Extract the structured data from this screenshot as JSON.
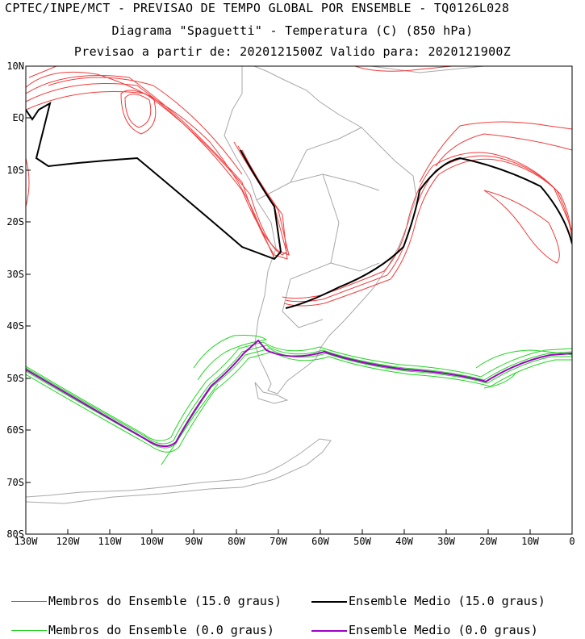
{
  "header": {
    "line1": "CPTEC/INPE/MCT - PREVISAO DE TEMPO GLOBAL POR ENSEMBLE - TQ0126L028",
    "line2": "Diagrama \"Spaguetti\" - Temperatura (C) (850 hPa)",
    "line3": "Previsao a partir de: 2020121500Z  Valido para: 2020121900Z"
  },
  "axes": {
    "lat_labels": [
      "10N",
      "EQ",
      "10S",
      "20S",
      "30S",
      "40S",
      "50S",
      "60S",
      "70S",
      "80S"
    ],
    "lon_labels": [
      "130W",
      "120W",
      "110W",
      "100W",
      "90W",
      "80W",
      "70W",
      "60W",
      "50W",
      "40W",
      "30W",
      "20W",
      "10W",
      "0"
    ]
  },
  "legend": {
    "members_15": "Membros do Ensemble (15.0 graus)",
    "mean_15": "Ensemble Medio (15.0 graus)",
    "members_0": "Membros do Ensemble (0.0 graus)",
    "mean_0": "Ensemble Medio (0.0 graus)"
  },
  "colors": {
    "members_15": "#f03c3c",
    "mean_15": "#000000",
    "members_0": "#22d422",
    "mean_0": "#a000c8",
    "coast": "#a8a8a8"
  }
}
